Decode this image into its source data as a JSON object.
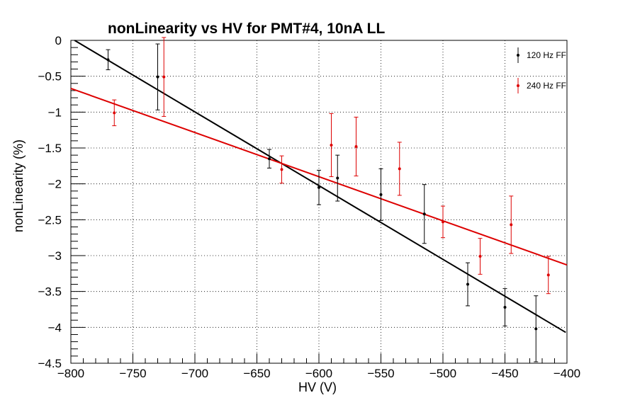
{
  "chart_data": {
    "type": "scatter",
    "title": "nonLinearity vs HV for PMT#4, 10nA LL",
    "xlabel": "HV (V)",
    "ylabel": "nonLinearity (%)",
    "xlim": [
      -800,
      -400
    ],
    "ylim": [
      -4.5,
      0
    ],
    "x_ticks": [
      -800,
      -750,
      -700,
      -650,
      -600,
      -550,
      -500,
      -450,
      -400
    ],
    "x_tick_labels": [
      "−800",
      "−750",
      "−700",
      "−650",
      "−600",
      "−550",
      "−500",
      "−450",
      "−400"
    ],
    "y_ticks": [
      0,
      -0.5,
      -1,
      -1.5,
      -2,
      -2.5,
      -3,
      -3.5,
      -4,
      -4.5
    ],
    "y_tick_labels": [
      "0",
      "−0.5",
      "−1",
      "−1.5",
      "−2",
      "−2.5",
      "−3",
      "−3.5",
      "−4",
      "−4.5"
    ],
    "grid": true,
    "legend_position": "top-right",
    "series": [
      {
        "name": "120 Hz FF",
        "color": "#000000",
        "points": [
          {
            "x": -770,
            "y": -0.27,
            "err": 0.14
          },
          {
            "x": -730,
            "y": -0.51,
            "err": 0.46
          },
          {
            "x": -640,
            "y": -1.65,
            "err": 0.13
          },
          {
            "x": -600,
            "y": -2.05,
            "err": 0.24
          },
          {
            "x": -585,
            "y": -1.92,
            "err": 0.32
          },
          {
            "x": -550,
            "y": -2.15,
            "err": 0.36
          },
          {
            "x": -515,
            "y": -2.42,
            "err": 0.41
          },
          {
            "x": -480,
            "y": -3.4,
            "err": 0.3
          },
          {
            "x": -450,
            "y": -3.72,
            "err": 0.26
          },
          {
            "x": -425,
            "y": -4.02,
            "err": 0.46
          }
        ],
        "fit": {
          "x0": -797,
          "y0": 0.0,
          "x1": -401,
          "y1": -4.07
        }
      },
      {
        "name": "240 Hz FF",
        "color": "#dd0000",
        "points": [
          {
            "x": -765,
            "y": -1.01,
            "err": 0.18
          },
          {
            "x": -725,
            "y": -0.51,
            "err": 0.55
          },
          {
            "x": -630,
            "y": -1.8,
            "err": 0.19
          },
          {
            "x": -590,
            "y": -1.46,
            "err": 0.44
          },
          {
            "x": -570,
            "y": -1.48,
            "err": 0.41
          },
          {
            "x": -535,
            "y": -1.79,
            "err": 0.37
          },
          {
            "x": -500,
            "y": -2.53,
            "err": 0.22
          },
          {
            "x": -470,
            "y": -3.01,
            "err": 0.25
          },
          {
            "x": -445,
            "y": -2.57,
            "err": 0.4
          },
          {
            "x": -415,
            "y": -3.27,
            "err": 0.26
          }
        ],
        "fit": {
          "x0": -800,
          "y0": -0.67,
          "x1": -400,
          "y1": -3.13
        }
      }
    ]
  }
}
